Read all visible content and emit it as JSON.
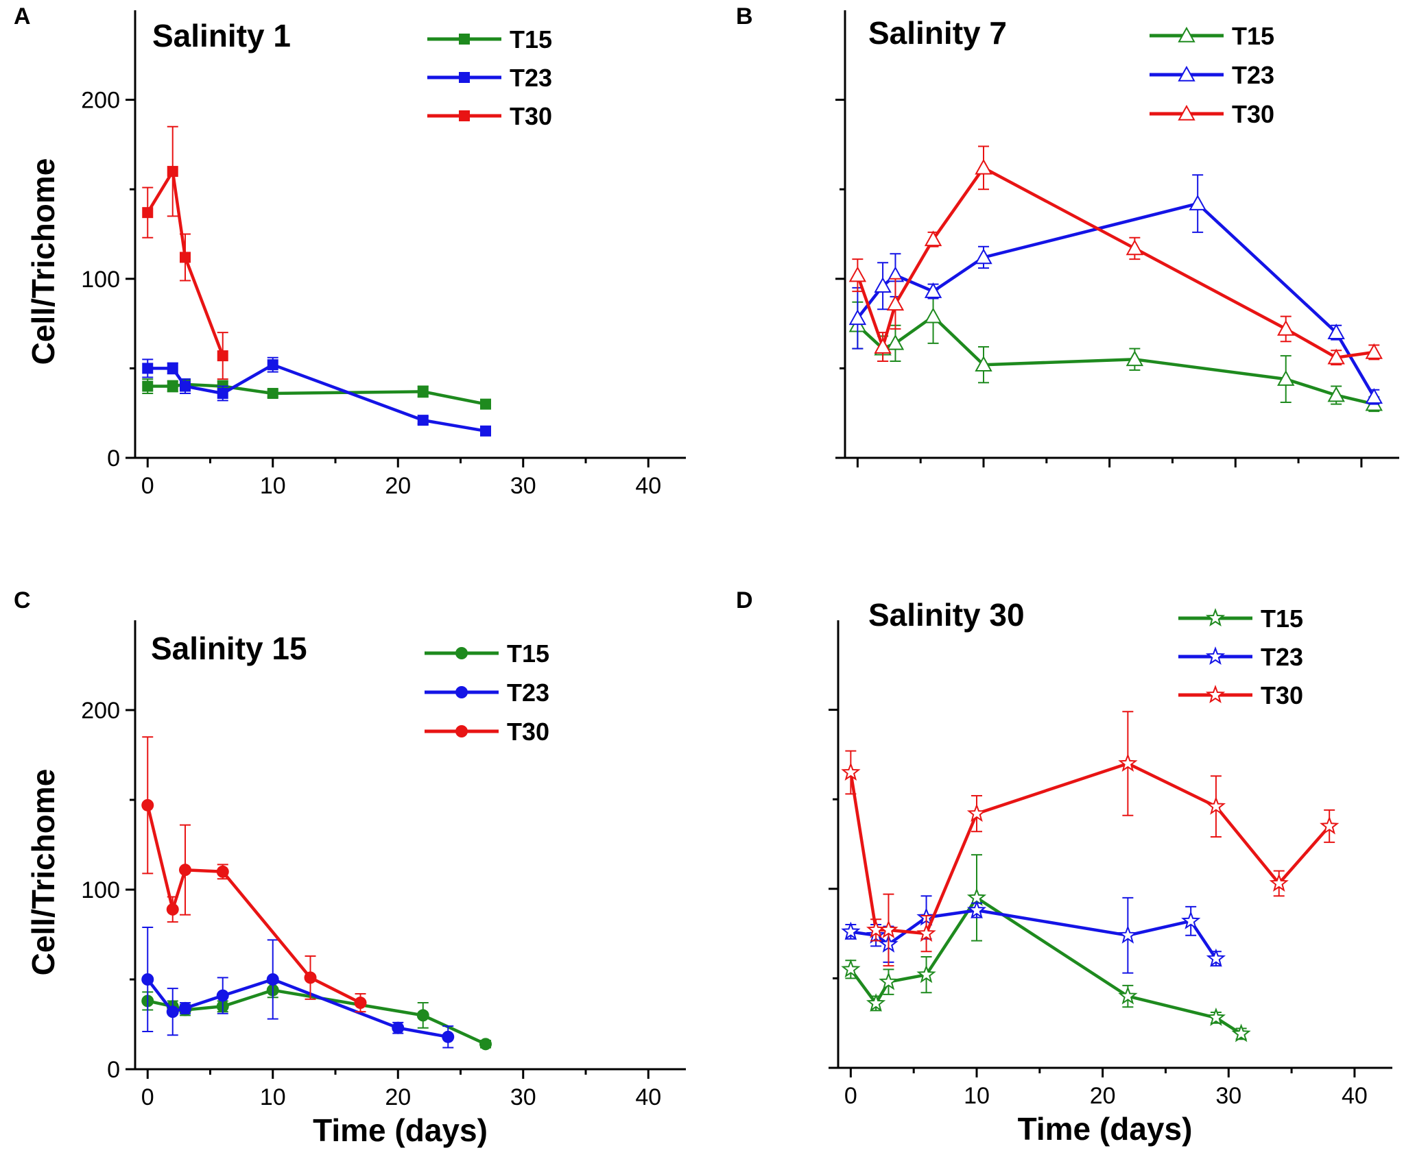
{
  "figure": {
    "xlabel": "Time (days)",
    "ylabel": "Cell/Trichome",
    "xticks": [
      0,
      10,
      20,
      30,
      40
    ],
    "yticks": [
      0,
      100,
      200
    ],
    "xlim": [
      -1,
      43
    ],
    "ylim": [
      0,
      250
    ]
  },
  "colors": {
    "T15": "#1e8a1e",
    "T23": "#1414e6",
    "T30": "#e81414"
  },
  "chart_data": [
    {
      "panel": "A",
      "type": "line",
      "title": "Salinity 1",
      "marker": "square",
      "show_tick_labels": true,
      "series": [
        {
          "name": "T15",
          "x": [
            0,
            2,
            3,
            6,
            10,
            22,
            27
          ],
          "y": [
            40,
            40,
            41,
            40,
            36,
            37,
            30
          ],
          "err": [
            4,
            3,
            3,
            3,
            2,
            3,
            2
          ]
        },
        {
          "name": "T23",
          "x": [
            0,
            2,
            3,
            6,
            10,
            22,
            27
          ],
          "y": [
            50,
            50,
            40,
            36,
            52,
            21,
            15
          ],
          "err": [
            5,
            3,
            4,
            4,
            4,
            2,
            2
          ]
        },
        {
          "name": "T30",
          "x": [
            0,
            2,
            3,
            6
          ],
          "y": [
            137,
            160,
            112,
            57
          ],
          "err": [
            14,
            25,
            13,
            13
          ]
        }
      ]
    },
    {
      "panel": "B",
      "type": "line",
      "title": "Salinity 7",
      "marker": "triangle",
      "show_tick_labels": false,
      "series": [
        {
          "name": "T15",
          "x": [
            0,
            2,
            3,
            6,
            10,
            22,
            34,
            38,
            41
          ],
          "y": [
            74,
            61,
            64,
            79,
            52,
            55,
            44,
            35,
            30
          ],
          "err": [
            13,
            7,
            10,
            15,
            10,
            6,
            13,
            5,
            4
          ]
        },
        {
          "name": "T23",
          "x": [
            0,
            2,
            3,
            6,
            10,
            27,
            38,
            41
          ],
          "y": [
            78,
            96,
            102,
            93,
            112,
            142,
            70,
            34
          ],
          "err": [
            17,
            13,
            12,
            4,
            6,
            16,
            4,
            4
          ]
        },
        {
          "name": "T30",
          "x": [
            0,
            2,
            3,
            6,
            10,
            22,
            34,
            38,
            41
          ],
          "y": [
            102,
            62,
            86,
            122,
            162,
            117,
            72,
            56,
            59
          ],
          "err": [
            9,
            8,
            14,
            4,
            12,
            6,
            7,
            4,
            4
          ]
        }
      ]
    },
    {
      "panel": "C",
      "type": "line",
      "title": "Salinity 15",
      "marker": "circle",
      "show_tick_labels": true,
      "series": [
        {
          "name": "T15",
          "x": [
            0,
            2,
            3,
            6,
            10,
            22,
            27
          ],
          "y": [
            38,
            35,
            33,
            35,
            44,
            30,
            14
          ],
          "err": [
            5,
            3,
            3,
            3,
            4,
            7,
            2
          ]
        },
        {
          "name": "T23",
          "x": [
            0,
            2,
            3,
            6,
            10,
            20,
            24
          ],
          "y": [
            50,
            32,
            34,
            41,
            50,
            23,
            18
          ],
          "err": [
            29,
            13,
            3,
            10,
            22,
            3,
            6
          ]
        },
        {
          "name": "T30",
          "x": [
            0,
            2,
            3,
            6,
            13,
            17
          ],
          "y": [
            147,
            89,
            111,
            110,
            51,
            37
          ],
          "err": [
            38,
            7,
            25,
            4,
            12,
            5
          ]
        }
      ]
    },
    {
      "panel": "D",
      "type": "line",
      "title": "Salinity 30",
      "marker": "star",
      "show_tick_labels": true,
      "series": [
        {
          "name": "T15",
          "x": [
            0,
            2,
            3,
            6,
            10,
            22,
            29,
            31
          ],
          "y": [
            55,
            36,
            48,
            52,
            95,
            40,
            28,
            19
          ],
          "err": [
            5,
            4,
            7,
            10,
            24,
            6,
            3,
            3
          ]
        },
        {
          "name": "T23",
          "x": [
            0,
            2,
            3,
            6,
            10,
            22,
            27,
            29
          ],
          "y": [
            76,
            74,
            69,
            84,
            88,
            74,
            82,
            61
          ],
          "err": [
            4,
            6,
            10,
            12,
            4,
            21,
            8,
            4
          ]
        },
        {
          "name": "T30",
          "x": [
            0,
            2,
            3,
            6,
            10,
            22,
            29,
            34,
            38
          ],
          "y": [
            165,
            77,
            77,
            75,
            142,
            170,
            146,
            103,
            135
          ],
          "err": [
            12,
            6,
            20,
            10,
            10,
            29,
            17,
            7,
            9
          ]
        }
      ]
    }
  ]
}
